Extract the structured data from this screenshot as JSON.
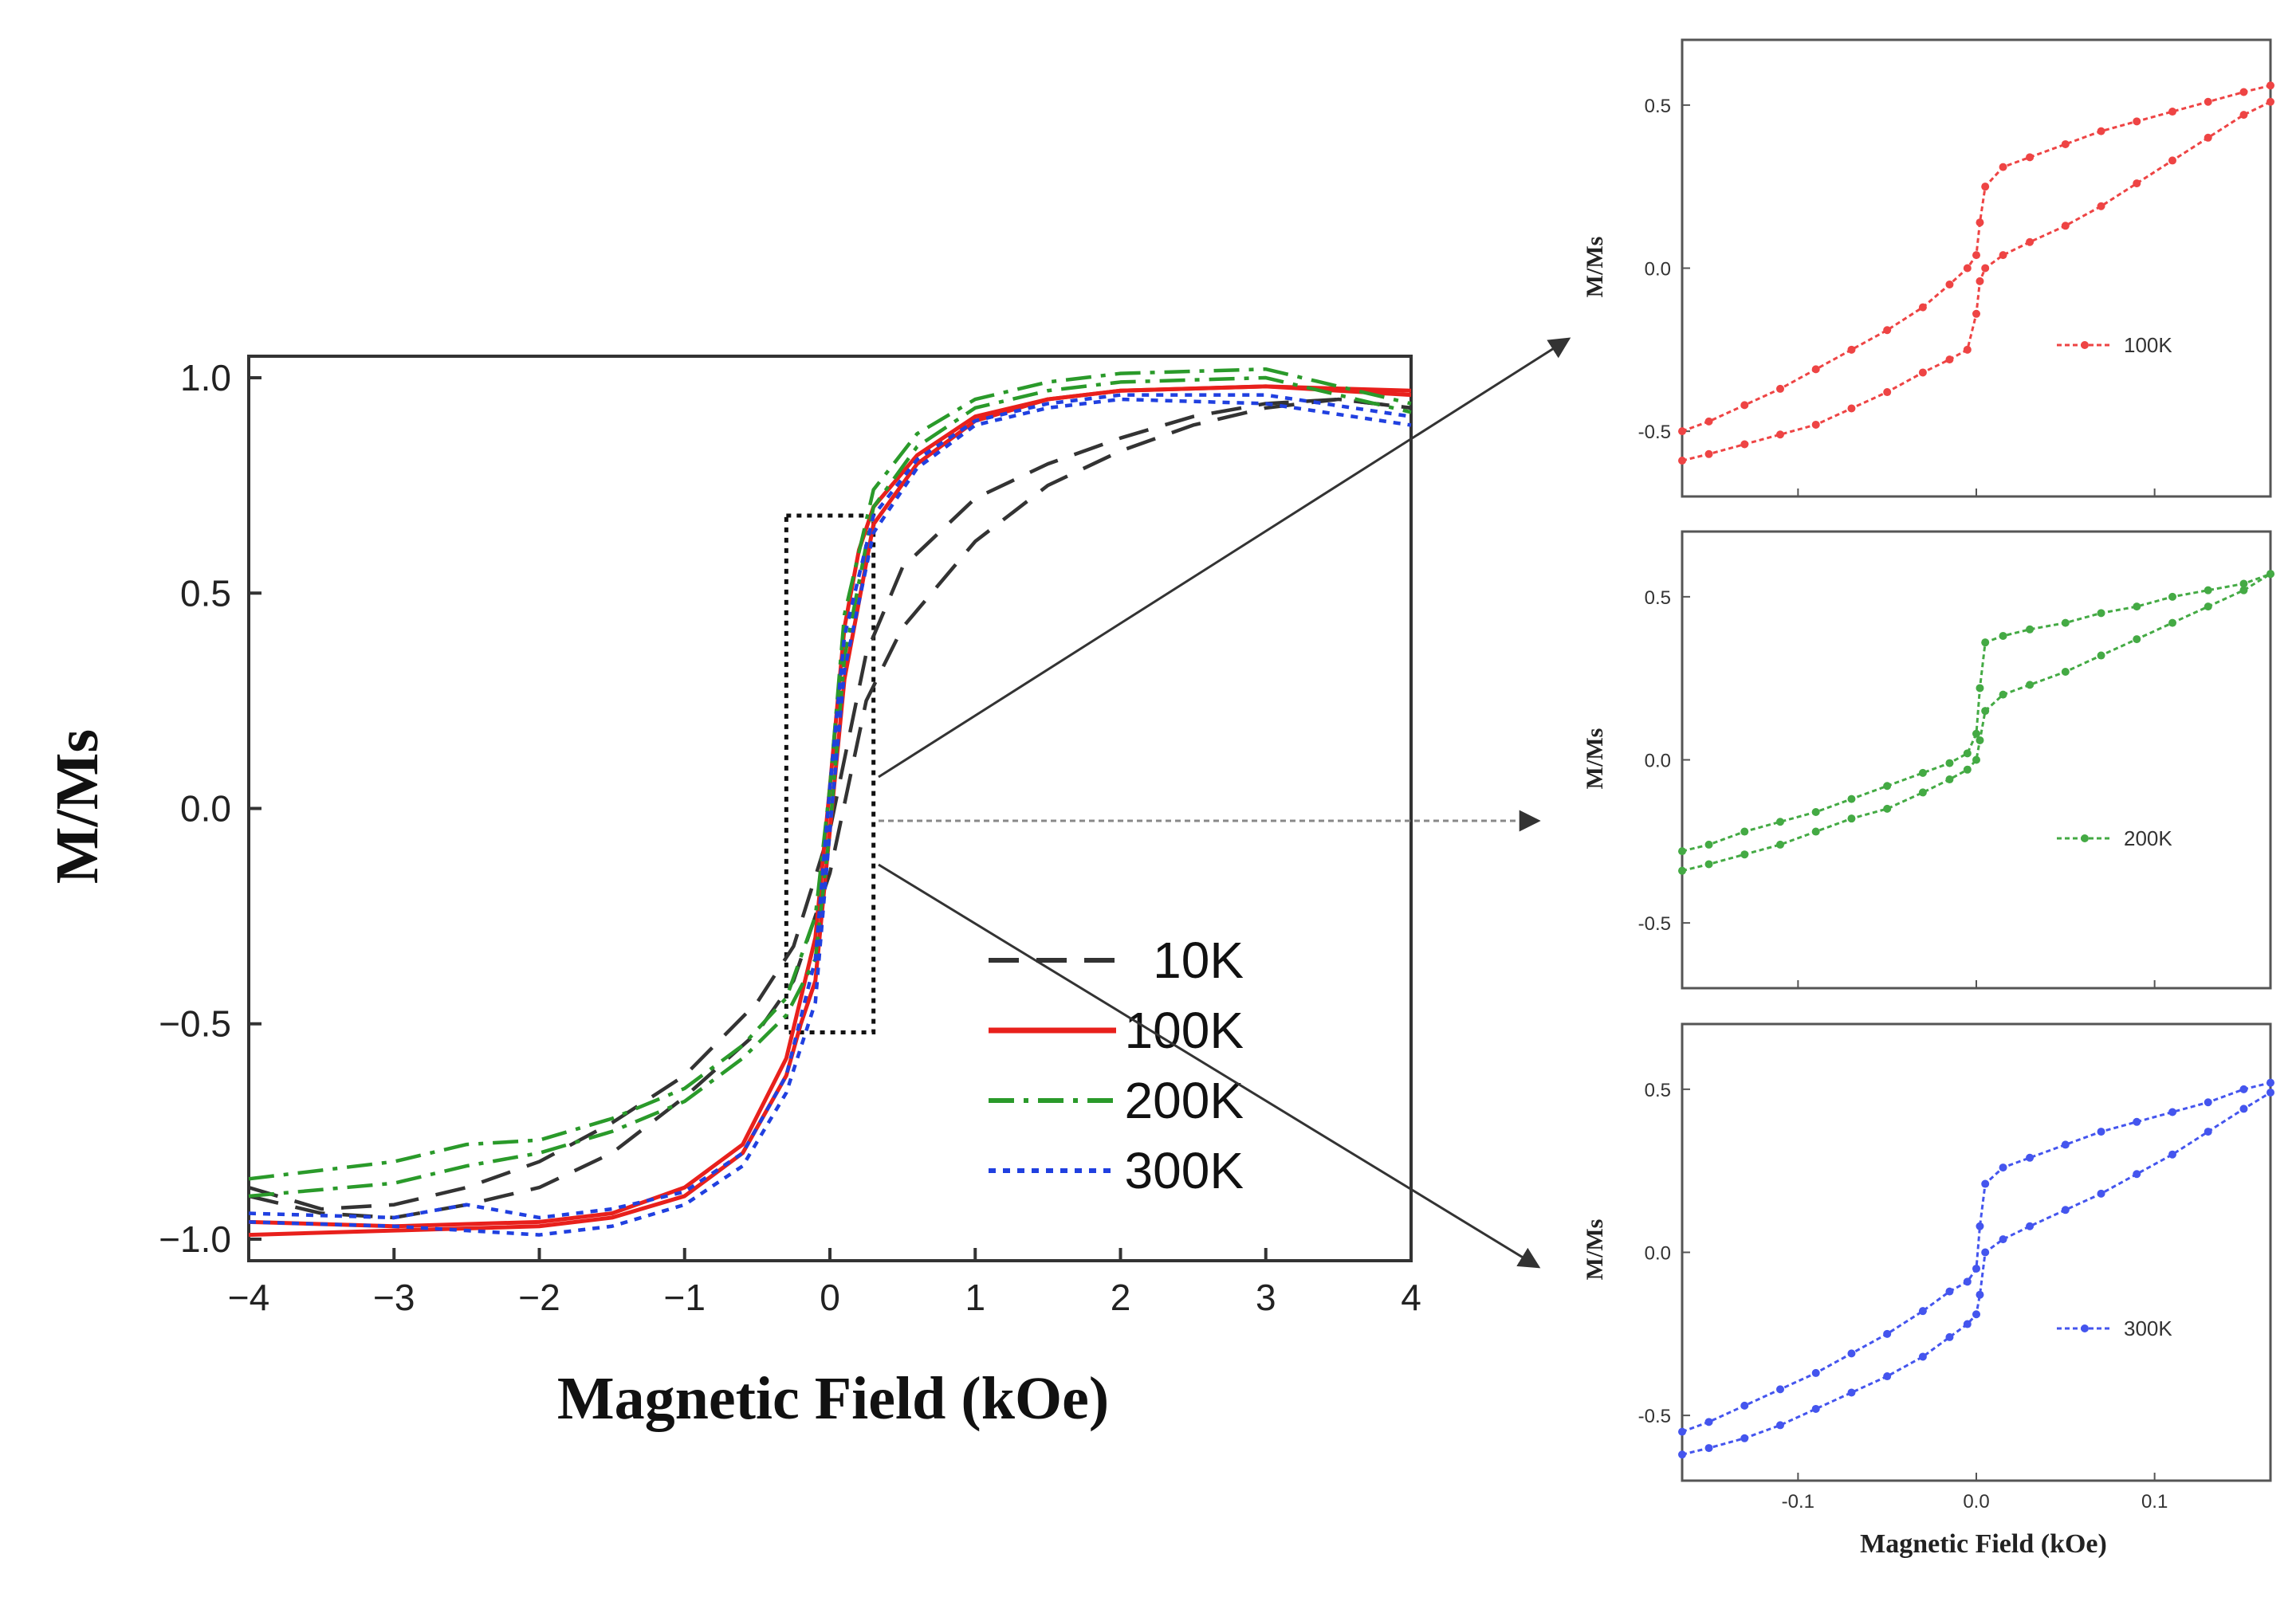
{
  "chart_data": [
    {
      "id": "main",
      "type": "line",
      "title": "",
      "xlabel": "Magnetic Field (kOe)",
      "ylabel": "M/Ms",
      "xlim": [
        -4,
        4
      ],
      "ylim": [
        -1.05,
        1.05
      ],
      "xticks": [
        -4,
        -3,
        -2,
        -1,
        0,
        1,
        2,
        3,
        4
      ],
      "xtick_labels": [
        "−4",
        "−3",
        "−2",
        "−1",
        "0",
        "1",
        "2",
        "3",
        "4"
      ],
      "yticks": [
        -1.0,
        -0.5,
        0.0,
        0.5,
        1.0
      ],
      "ytick_labels": [
        "−1.0",
        "−0.5",
        "0.0",
        "0.5",
        "1.0"
      ],
      "legend_position": "bottom-right",
      "zoom_box": {
        "x": [
          -0.3,
          0.3
        ],
        "y": [
          -0.52,
          0.68
        ]
      },
      "series": [
        {
          "name": "10K",
          "color": "#333333",
          "dash": "dash",
          "x_upper": [
            -4,
            -3.5,
            -3,
            -2.5,
            -2,
            -1.5,
            -1,
            -0.5,
            -0.25,
            0,
            0.25,
            0.5,
            1,
            1.5,
            2,
            2.5,
            3,
            3.5,
            4
          ],
          "y_upper": [
            -0.88,
            -0.93,
            -0.92,
            -0.88,
            -0.82,
            -0.73,
            -0.62,
            -0.45,
            -0.32,
            -0.05,
            0.36,
            0.56,
            0.72,
            0.8,
            0.86,
            0.91,
            0.94,
            0.95,
            0.93
          ],
          "x_lower": [
            -4,
            -3.5,
            -3,
            -2.5,
            -2,
            -1.5,
            -1,
            -0.5,
            -0.25,
            0,
            0.25,
            0.5,
            1,
            1.5,
            2,
            2.5,
            3,
            3.5,
            4
          ],
          "y_lower": [
            -0.9,
            -0.94,
            -0.95,
            -0.92,
            -0.88,
            -0.8,
            -0.67,
            -0.52,
            -0.4,
            -0.15,
            0.25,
            0.42,
            0.62,
            0.75,
            0.83,
            0.89,
            0.93,
            0.95,
            0.93
          ]
        },
        {
          "name": "100K",
          "color": "#e8201c",
          "dash": "solid",
          "x_upper": [
            -4,
            -3,
            -2,
            -1.5,
            -1,
            -0.6,
            -0.3,
            -0.1,
            0,
            0.1,
            0.2,
            0.3,
            0.6,
            1,
            1.5,
            2,
            3,
            4
          ],
          "y_upper": [
            -0.96,
            -0.97,
            -0.96,
            -0.94,
            -0.88,
            -0.78,
            -0.58,
            -0.3,
            0.05,
            0.42,
            0.6,
            0.7,
            0.82,
            0.91,
            0.95,
            0.97,
            0.98,
            0.97
          ],
          "x_lower": [
            -4,
            -3,
            -2,
            -1.5,
            -1,
            -0.6,
            -0.3,
            -0.2,
            -0.1,
            0,
            0.1,
            0.3,
            0.6,
            1,
            1.5,
            2,
            3,
            4
          ],
          "y_lower": [
            -0.99,
            -0.98,
            -0.97,
            -0.95,
            -0.9,
            -0.8,
            -0.62,
            -0.5,
            -0.4,
            -0.05,
            0.3,
            0.66,
            0.8,
            0.9,
            0.95,
            0.97,
            0.98,
            0.96
          ]
        },
        {
          "name": "200K",
          "color": "#2a9a2a",
          "dash": "dashdot",
          "x_upper": [
            -4,
            -3,
            -2.5,
            -2,
            -1.5,
            -1,
            -0.6,
            -0.3,
            -0.1,
            0,
            0.1,
            0.3,
            0.6,
            1,
            1.5,
            2,
            3,
            4
          ],
          "y_upper": [
            -0.86,
            -0.82,
            -0.78,
            -0.77,
            -0.72,
            -0.65,
            -0.55,
            -0.44,
            -0.25,
            0.05,
            0.45,
            0.74,
            0.87,
            0.95,
            0.99,
            1.01,
            1.02,
            0.94
          ],
          "x_lower": [
            -4,
            -3,
            -2.5,
            -2,
            -1.5,
            -1,
            -0.6,
            -0.3,
            -0.1,
            0,
            0.1,
            0.3,
            0.6,
            1,
            1.5,
            2,
            3,
            4
          ],
          "y_lower": [
            -0.9,
            -0.87,
            -0.83,
            -0.8,
            -0.75,
            -0.68,
            -0.58,
            -0.48,
            -0.35,
            -0.05,
            0.35,
            0.7,
            0.84,
            0.93,
            0.97,
            0.99,
            1.0,
            0.92
          ]
        },
        {
          "name": "300K",
          "color": "#2040e0",
          "dash": "dot",
          "x_upper": [
            -4,
            -3,
            -2.5,
            -2,
            -1.5,
            -1,
            -0.6,
            -0.3,
            -0.1,
            0,
            0.1,
            0.3,
            0.6,
            1,
            1.5,
            2,
            3,
            4
          ],
          "y_upper": [
            -0.94,
            -0.95,
            -0.92,
            -0.95,
            -0.93,
            -0.89,
            -0.8,
            -0.62,
            -0.35,
            0.05,
            0.4,
            0.68,
            0.81,
            0.9,
            0.94,
            0.96,
            0.96,
            0.91
          ],
          "x_lower": [
            -4,
            -3,
            -2.5,
            -2,
            -1.5,
            -1,
            -0.6,
            -0.3,
            -0.1,
            0,
            0.1,
            0.3,
            0.6,
            1,
            1.5,
            2,
            3,
            4
          ],
          "y_lower": [
            -0.96,
            -0.97,
            -0.98,
            -0.99,
            -0.97,
            -0.92,
            -0.83,
            -0.66,
            -0.45,
            -0.05,
            0.32,
            0.64,
            0.79,
            0.89,
            0.93,
            0.95,
            0.94,
            0.89
          ]
        }
      ],
      "legend": [
        "10K",
        "100K",
        "200K",
        "300K"
      ]
    },
    {
      "id": "inset-100K",
      "type": "line",
      "xlabel": "",
      "ylabel": "M/Ms",
      "xlim": [
        -0.165,
        0.165
      ],
      "ylim": [
        -0.7,
        0.7
      ],
      "yticks": [
        -0.5,
        0.0,
        0.5
      ],
      "ytick_labels": [
        "-0.5",
        "0.0",
        "0.5"
      ],
      "xticks": [
        -0.1,
        0.0,
        0.1
      ],
      "xtick_labels": [],
      "series": [
        {
          "name": "100K",
          "color": "#ee4444",
          "x_upper": [
            -0.165,
            -0.15,
            -0.13,
            -0.11,
            -0.09,
            -0.07,
            -0.05,
            -0.03,
            -0.015,
            -0.005,
            0.0,
            0.002,
            0.005,
            0.015,
            0.03,
            0.05,
            0.07,
            0.09,
            0.11,
            0.13,
            0.15,
            0.165
          ],
          "y_upper": [
            -0.5,
            -0.47,
            -0.42,
            -0.37,
            -0.31,
            -0.25,
            -0.19,
            -0.12,
            -0.05,
            0.0,
            0.04,
            0.14,
            0.25,
            0.31,
            0.34,
            0.38,
            0.42,
            0.45,
            0.48,
            0.51,
            0.54,
            0.56
          ],
          "x_lower": [
            -0.165,
            -0.15,
            -0.13,
            -0.11,
            -0.09,
            -0.07,
            -0.05,
            -0.03,
            -0.015,
            -0.005,
            0.0,
            0.002,
            0.005,
            0.015,
            0.03,
            0.05,
            0.07,
            0.09,
            0.11,
            0.13,
            0.15,
            0.165
          ],
          "y_lower": [
            -0.59,
            -0.57,
            -0.54,
            -0.51,
            -0.48,
            -0.43,
            -0.38,
            -0.32,
            -0.28,
            -0.25,
            -0.14,
            -0.04,
            0.0,
            0.04,
            0.08,
            0.13,
            0.19,
            0.26,
            0.33,
            0.4,
            0.47,
            0.51
          ]
        }
      ],
      "legend": [
        "100K"
      ]
    },
    {
      "id": "inset-200K",
      "type": "line",
      "xlabel": "",
      "ylabel": "M/Ms",
      "xlim": [
        -0.165,
        0.165
      ],
      "ylim": [
        -0.7,
        0.7
      ],
      "yticks": [
        -0.5,
        0.0,
        0.5
      ],
      "ytick_labels": [
        "-0.5",
        "0.0",
        "0.5"
      ],
      "xticks": [
        -0.1,
        0.0,
        0.1
      ],
      "xtick_labels": [],
      "series": [
        {
          "name": "200K",
          "color": "#44aa44",
          "x_upper": [
            -0.165,
            -0.15,
            -0.13,
            -0.11,
            -0.09,
            -0.07,
            -0.05,
            -0.03,
            -0.015,
            -0.005,
            0.0,
            0.002,
            0.005,
            0.015,
            0.03,
            0.05,
            0.07,
            0.09,
            0.11,
            0.13,
            0.15,
            0.165
          ],
          "y_upper": [
            -0.28,
            -0.26,
            -0.22,
            -0.19,
            -0.16,
            -0.12,
            -0.08,
            -0.04,
            -0.01,
            0.02,
            0.08,
            0.22,
            0.36,
            0.38,
            0.4,
            0.42,
            0.45,
            0.47,
            0.5,
            0.52,
            0.54,
            0.57
          ],
          "x_lower": [
            -0.165,
            -0.15,
            -0.13,
            -0.11,
            -0.09,
            -0.07,
            -0.05,
            -0.03,
            -0.015,
            -0.005,
            0.0,
            0.002,
            0.005,
            0.015,
            0.03,
            0.05,
            0.07,
            0.09,
            0.11,
            0.13,
            0.15,
            0.165
          ],
          "y_lower": [
            -0.34,
            -0.32,
            -0.29,
            -0.26,
            -0.22,
            -0.18,
            -0.15,
            -0.1,
            -0.06,
            -0.03,
            0.0,
            0.06,
            0.15,
            0.2,
            0.23,
            0.27,
            0.32,
            0.37,
            0.42,
            0.47,
            0.52,
            0.57
          ]
        }
      ],
      "legend": [
        "200K"
      ]
    },
    {
      "id": "inset-300K",
      "type": "line",
      "xlabel": "Magnetic Field (kOe)",
      "ylabel": "M/Ms",
      "xlim": [
        -0.165,
        0.165
      ],
      "ylim": [
        -0.7,
        0.7
      ],
      "yticks": [
        -0.5,
        0.0,
        0.5
      ],
      "ytick_labels": [
        "-0.5",
        "0.0",
        "0.5"
      ],
      "xticks": [
        -0.1,
        0.0,
        0.1
      ],
      "xtick_labels": [
        "-0.1",
        "0.0",
        "0.1"
      ],
      "series": [
        {
          "name": "300K",
          "color": "#4455ee",
          "x_upper": [
            -0.165,
            -0.15,
            -0.13,
            -0.11,
            -0.09,
            -0.07,
            -0.05,
            -0.03,
            -0.015,
            -0.005,
            0.0,
            0.002,
            0.005,
            0.015,
            0.03,
            0.05,
            0.07,
            0.09,
            0.11,
            0.13,
            0.15,
            0.165
          ],
          "y_upper": [
            -0.55,
            -0.52,
            -0.47,
            -0.42,
            -0.37,
            -0.31,
            -0.25,
            -0.18,
            -0.12,
            -0.09,
            -0.05,
            0.08,
            0.21,
            0.26,
            0.29,
            0.33,
            0.37,
            0.4,
            0.43,
            0.46,
            0.5,
            0.52
          ],
          "x_lower": [
            -0.165,
            -0.15,
            -0.13,
            -0.11,
            -0.09,
            -0.07,
            -0.05,
            -0.03,
            -0.015,
            -0.005,
            0.0,
            0.002,
            0.005,
            0.015,
            0.03,
            0.05,
            0.07,
            0.09,
            0.11,
            0.13,
            0.15,
            0.165
          ],
          "y_lower": [
            -0.62,
            -0.6,
            -0.57,
            -0.53,
            -0.48,
            -0.43,
            -0.38,
            -0.32,
            -0.26,
            -0.22,
            -0.19,
            -0.13,
            0.0,
            0.04,
            0.08,
            0.13,
            0.18,
            0.24,
            0.3,
            0.37,
            0.44,
            0.49
          ]
        }
      ],
      "legend": [
        "300K"
      ]
    }
  ]
}
